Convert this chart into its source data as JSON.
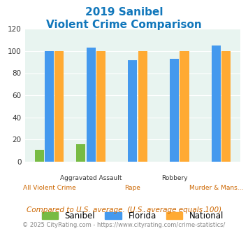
{
  "title_line1": "2019 Sanibel",
  "title_line2": "Violent Crime Comparison",
  "categories": [
    "All Violent Crime",
    "Aggravated Assault",
    "Rape",
    "Robbery",
    "Murder & Mans..."
  ],
  "sanibel": [
    11,
    16,
    0,
    0,
    0
  ],
  "florida": [
    100,
    103,
    92,
    93,
    105
  ],
  "national": [
    100,
    100,
    100,
    100,
    100
  ],
  "sanibel_color": "#77bb44",
  "florida_color": "#4499ee",
  "national_color": "#ffaa33",
  "bg_color": "#e8f4f0",
  "ylim": [
    0,
    120
  ],
  "yticks": [
    0,
    20,
    40,
    60,
    80,
    100,
    120
  ],
  "footnote1": "Compared to U.S. average. (U.S. average equals 100)",
  "footnote2": "© 2025 CityRating.com - https://www.cityrating.com/crime-statistics/",
  "title_color": "#1177bb",
  "footnote1_color": "#cc6600",
  "footnote2_color": "#888888"
}
